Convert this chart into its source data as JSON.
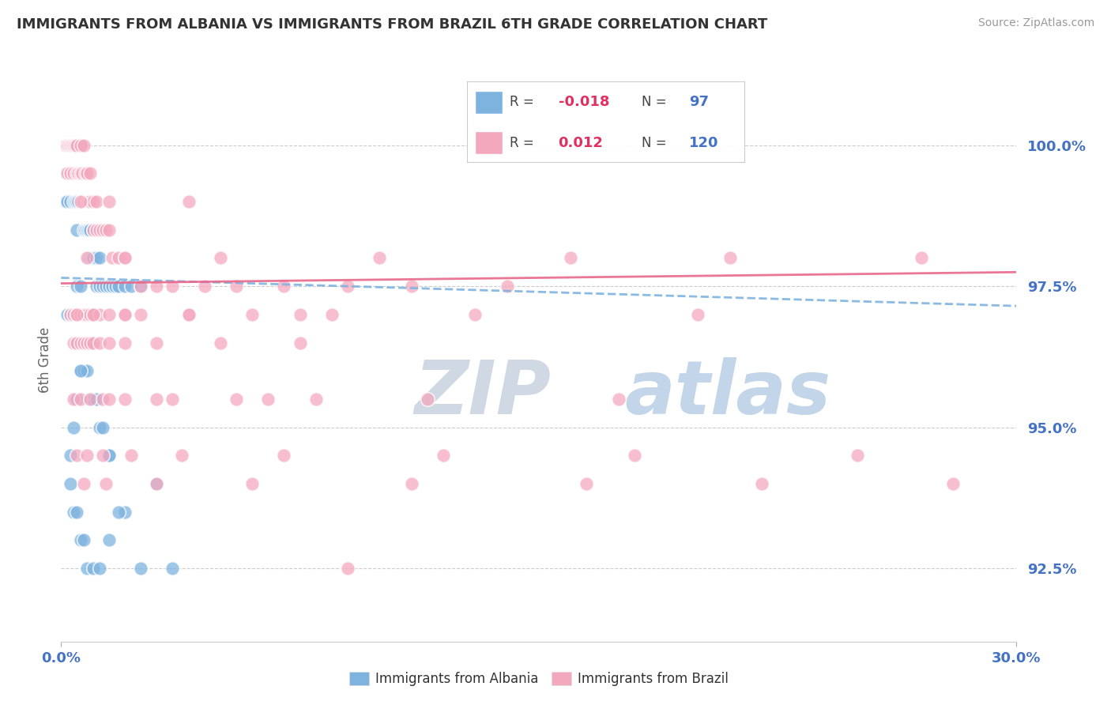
{
  "title": "IMMIGRANTS FROM ALBANIA VS IMMIGRANTS FROM BRAZIL 6TH GRADE CORRELATION CHART",
  "source": "Source: ZipAtlas.com",
  "ylabel": "6th Grade",
  "y_tick_labels": [
    "92.5%",
    "95.0%",
    "97.5%",
    "100.0%"
  ],
  "y_tick_values": [
    92.5,
    95.0,
    97.5,
    100.0
  ],
  "x_min": 0.0,
  "x_max": 30.0,
  "y_min": 91.2,
  "y_max": 101.2,
  "legend_albania": "Immigrants from Albania",
  "legend_brazil": "Immigrants from Brazil",
  "R_albania": -0.018,
  "N_albania": 97,
  "R_brazil": 0.012,
  "N_brazil": 120,
  "color_albania": "#7eb3e0",
  "color_brazil": "#f4a8be",
  "color_trend_albania": "#7eb3e0",
  "color_trend_brazil": "#e8688a",
  "color_axis_labels": "#4472c4",
  "watermark_color": "#c8d8e8",
  "background_color": "#ffffff",
  "trend_albania_y0": 97.65,
  "trend_albania_y1": 97.15,
  "trend_brazil_y0": 97.55,
  "trend_brazil_y1": 97.75,
  "albania_x": [
    0.15,
    0.15,
    0.15,
    0.2,
    0.2,
    0.2,
    0.25,
    0.25,
    0.3,
    0.3,
    0.3,
    0.35,
    0.35,
    0.4,
    0.4,
    0.4,
    0.45,
    0.45,
    0.45,
    0.5,
    0.5,
    0.5,
    0.5,
    0.55,
    0.55,
    0.6,
    0.6,
    0.6,
    0.65,
    0.65,
    0.7,
    0.7,
    0.7,
    0.75,
    0.75,
    0.8,
    0.8,
    0.85,
    0.85,
    0.9,
    0.9,
    0.95,
    1.0,
    1.0,
    1.1,
    1.1,
    1.2,
    1.2,
    1.3,
    1.4,
    1.5,
    1.6,
    1.7,
    1.8,
    2.0,
    2.2,
    2.5,
    0.2,
    0.3,
    0.4,
    0.5,
    0.5,
    0.6,
    0.7,
    0.8,
    0.9,
    1.0,
    1.1,
    1.2,
    1.3,
    1.5,
    1.0,
    0.8,
    0.6,
    0.5,
    0.4,
    0.3,
    0.3,
    0.4,
    0.5,
    0.6,
    0.7,
    0.8,
    1.0,
    1.2,
    1.5,
    2.0,
    3.0,
    0.5,
    0.6,
    0.7,
    0.8,
    0.9,
    1.5,
    1.8,
    2.5,
    3.5
  ],
  "albania_y": [
    100.0,
    99.5,
    99.0,
    100.0,
    99.5,
    99.0,
    100.0,
    99.5,
    100.0,
    99.5,
    99.0,
    100.0,
    99.5,
    100.0,
    99.5,
    99.0,
    100.0,
    99.5,
    99.0,
    100.0,
    99.5,
    99.0,
    98.5,
    99.5,
    99.0,
    100.0,
    99.5,
    99.0,
    99.5,
    99.0,
    99.5,
    99.0,
    98.5,
    99.0,
    98.5,
    99.0,
    98.5,
    98.5,
    98.0,
    98.5,
    98.0,
    98.0,
    98.5,
    98.0,
    98.0,
    97.5,
    98.0,
    97.5,
    97.5,
    97.5,
    97.5,
    97.5,
    97.5,
    97.5,
    97.5,
    97.5,
    97.5,
    97.0,
    97.0,
    97.0,
    96.5,
    96.5,
    96.0,
    96.0,
    96.0,
    95.5,
    95.5,
    95.5,
    95.0,
    95.0,
    94.5,
    97.0,
    96.5,
    96.0,
    95.5,
    95.0,
    94.5,
    94.0,
    93.5,
    93.5,
    93.0,
    93.0,
    92.5,
    92.5,
    92.5,
    93.0,
    93.5,
    94.0,
    97.5,
    97.5,
    97.0,
    97.0,
    96.5,
    94.5,
    93.5,
    92.5,
    92.5
  ],
  "brazil_x": [
    0.15,
    0.2,
    0.2,
    0.25,
    0.3,
    0.3,
    0.35,
    0.4,
    0.4,
    0.45,
    0.5,
    0.5,
    0.55,
    0.6,
    0.6,
    0.65,
    0.7,
    0.7,
    0.75,
    0.8,
    0.8,
    0.85,
    0.9,
    0.9,
    1.0,
    1.0,
    1.1,
    1.1,
    1.2,
    1.3,
    1.4,
    1.5,
    1.6,
    1.8,
    2.0,
    2.5,
    3.0,
    3.5,
    4.5,
    5.5,
    7.0,
    9.0,
    11.0,
    14.0,
    0.3,
    0.4,
    0.5,
    0.6,
    0.7,
    0.8,
    0.9,
    1.0,
    1.2,
    1.5,
    2.0,
    2.5,
    4.0,
    6.0,
    8.5,
    0.4,
    0.5,
    0.6,
    0.7,
    0.8,
    0.9,
    1.0,
    1.2,
    1.5,
    2.0,
    3.0,
    5.0,
    7.5,
    0.4,
    0.6,
    0.9,
    1.3,
    2.0,
    3.5,
    5.5,
    8.0,
    0.5,
    0.8,
    1.3,
    2.2,
    3.8,
    7.0,
    12.0,
    18.0,
    25.0,
    0.5,
    1.0,
    2.0,
    4.0,
    7.5,
    13.0,
    20.0,
    1.5,
    3.0,
    6.5,
    11.5,
    17.5,
    0.7,
    1.4,
    3.0,
    6.0,
    11.0,
    16.5,
    22.0,
    28.0,
    0.8,
    2.0,
    5.0,
    10.0,
    16.0,
    21.0,
    27.0,
    0.6,
    1.5,
    4.0,
    9.0
  ],
  "brazil_y": [
    100.0,
    100.0,
    99.5,
    100.0,
    100.0,
    99.5,
    100.0,
    100.0,
    99.5,
    100.0,
    100.0,
    99.5,
    99.5,
    100.0,
    99.5,
    99.5,
    100.0,
    99.0,
    99.5,
    99.5,
    99.0,
    99.0,
    99.5,
    99.0,
    99.0,
    98.5,
    99.0,
    98.5,
    98.5,
    98.5,
    98.5,
    98.5,
    98.0,
    98.0,
    98.0,
    97.5,
    97.5,
    97.5,
    97.5,
    97.5,
    97.5,
    97.5,
    97.5,
    97.5,
    97.0,
    97.0,
    97.0,
    97.0,
    97.0,
    97.0,
    97.0,
    97.0,
    97.0,
    97.0,
    97.0,
    97.0,
    97.0,
    97.0,
    97.0,
    96.5,
    96.5,
    96.5,
    96.5,
    96.5,
    96.5,
    96.5,
    96.5,
    96.5,
    96.5,
    96.5,
    96.5,
    96.5,
    95.5,
    95.5,
    95.5,
    95.5,
    95.5,
    95.5,
    95.5,
    95.5,
    94.5,
    94.5,
    94.5,
    94.5,
    94.5,
    94.5,
    94.5,
    94.5,
    94.5,
    97.0,
    97.0,
    97.0,
    97.0,
    97.0,
    97.0,
    97.0,
    95.5,
    95.5,
    95.5,
    95.5,
    95.5,
    94.0,
    94.0,
    94.0,
    94.0,
    94.0,
    94.0,
    94.0,
    94.0,
    98.0,
    98.0,
    98.0,
    98.0,
    98.0,
    98.0,
    98.0,
    99.0,
    99.0,
    99.0,
    92.5
  ]
}
